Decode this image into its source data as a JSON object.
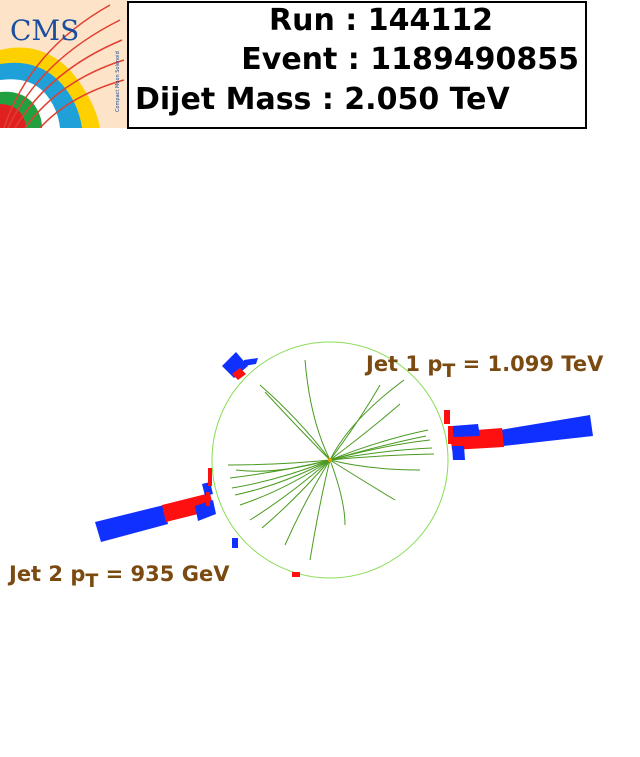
{
  "logo": {
    "text": "CMS",
    "subtitle": "Compact Muon Solenoid"
  },
  "header": {
    "run": "Run : 144112",
    "event": "Event : 1189490855",
    "mass": "Dijet Mass : 2.050 TeV"
  },
  "jets": {
    "jet1": {
      "prefix": "Jet 1 p",
      "sub": "T",
      "value": " = 1.099 TeV"
    },
    "jet2": {
      "prefix": "Jet 2 p",
      "sub": "T",
      "value": " = 935 GeV"
    }
  },
  "colors": {
    "ecal": "#ff1010",
    "hcal": "#1030ff",
    "tracks": "#4a9a20",
    "tracker_boundary": "#88dd55",
    "label": "#7a4a10"
  }
}
